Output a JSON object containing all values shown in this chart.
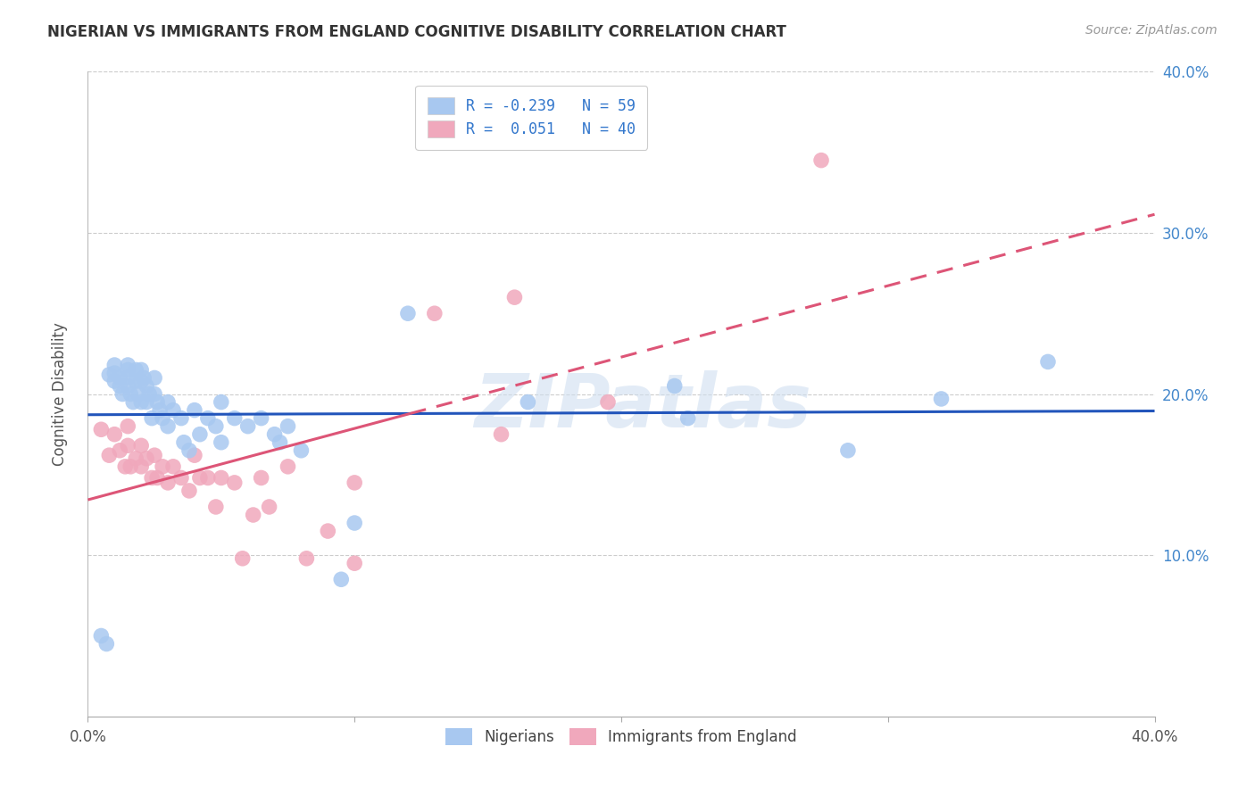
{
  "title": "NIGERIAN VS IMMIGRANTS FROM ENGLAND COGNITIVE DISABILITY CORRELATION CHART",
  "source": "Source: ZipAtlas.com",
  "ylabel": "Cognitive Disability",
  "xlabel": "",
  "xlim": [
    0.0,
    0.4
  ],
  "ylim": [
    0.0,
    0.4
  ],
  "xtick_labels": [
    "0.0%",
    "",
    "",
    "",
    "40.0%"
  ],
  "xtick_values": [
    0.0,
    0.1,
    0.2,
    0.3,
    0.4
  ],
  "ytick_values": [
    0.1,
    0.2,
    0.3,
    0.4
  ],
  "right_ytick_labels": [
    "10.0%",
    "20.0%",
    "30.0%",
    "40.0%"
  ],
  "right_ytick_values": [
    0.1,
    0.2,
    0.3,
    0.4
  ],
  "legend_R_blue": "-0.239",
  "legend_N_blue": "59",
  "legend_R_pink": "0.051",
  "legend_N_pink": "40",
  "blue_color": "#a8c8f0",
  "pink_color": "#f0a8bc",
  "blue_line_color": "#2255bb",
  "pink_line_color": "#dd5577",
  "watermark_text": "ZIPatlas",
  "nigerians_x": [
    0.005,
    0.007,
    0.008,
    0.01,
    0.01,
    0.01,
    0.012,
    0.012,
    0.013,
    0.015,
    0.015,
    0.015,
    0.015,
    0.016,
    0.017,
    0.018,
    0.018,
    0.019,
    0.02,
    0.02,
    0.02,
    0.021,
    0.022,
    0.022,
    0.023,
    0.024,
    0.025,
    0.025,
    0.026,
    0.027,
    0.028,
    0.03,
    0.03,
    0.032,
    0.035,
    0.036,
    0.038,
    0.04,
    0.042,
    0.045,
    0.048,
    0.05,
    0.05,
    0.055,
    0.06,
    0.065,
    0.07,
    0.072,
    0.075,
    0.08,
    0.095,
    0.1,
    0.12,
    0.165,
    0.22,
    0.225,
    0.285,
    0.32,
    0.36
  ],
  "nigerians_y": [
    0.05,
    0.045,
    0.212,
    0.218,
    0.213,
    0.208,
    0.21,
    0.205,
    0.2,
    0.218,
    0.215,
    0.21,
    0.205,
    0.2,
    0.195,
    0.215,
    0.208,
    0.2,
    0.215,
    0.208,
    0.195,
    0.21,
    0.205,
    0.195,
    0.2,
    0.185,
    0.21,
    0.2,
    0.195,
    0.19,
    0.185,
    0.195,
    0.18,
    0.19,
    0.185,
    0.17,
    0.165,
    0.19,
    0.175,
    0.185,
    0.18,
    0.195,
    0.17,
    0.185,
    0.18,
    0.185,
    0.175,
    0.17,
    0.18,
    0.165,
    0.085,
    0.12,
    0.25,
    0.195,
    0.205,
    0.185,
    0.165,
    0.197,
    0.22
  ],
  "england_x": [
    0.005,
    0.008,
    0.01,
    0.012,
    0.014,
    0.015,
    0.015,
    0.016,
    0.018,
    0.02,
    0.02,
    0.022,
    0.024,
    0.025,
    0.026,
    0.028,
    0.03,
    0.032,
    0.035,
    0.038,
    0.04,
    0.042,
    0.045,
    0.048,
    0.05,
    0.055,
    0.058,
    0.062,
    0.065,
    0.068,
    0.075,
    0.082,
    0.09,
    0.1,
    0.1,
    0.13,
    0.155,
    0.16,
    0.195,
    0.275
  ],
  "england_y": [
    0.178,
    0.162,
    0.175,
    0.165,
    0.155,
    0.18,
    0.168,
    0.155,
    0.16,
    0.168,
    0.155,
    0.16,
    0.148,
    0.162,
    0.148,
    0.155,
    0.145,
    0.155,
    0.148,
    0.14,
    0.162,
    0.148,
    0.148,
    0.13,
    0.148,
    0.145,
    0.098,
    0.125,
    0.148,
    0.13,
    0.155,
    0.098,
    0.115,
    0.145,
    0.095,
    0.25,
    0.175,
    0.26,
    0.195,
    0.345
  ]
}
